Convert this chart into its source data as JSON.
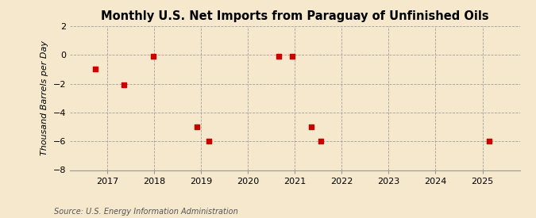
{
  "title": "Monthly U.S. Net Imports from Paraguay of Unfinished Oils",
  "ylabel": "Thousand Barrels per Day",
  "source": "Source: U.S. Energy Information Administration",
  "background_color": "#f5e8cc",
  "plot_bg_color": "#f5e8cc",
  "point_color": "#cc0000",
  "point_marker": "s",
  "point_size": 18,
  "ylim": [
    -8,
    2
  ],
  "yticks": [
    -8,
    -6,
    -4,
    -2,
    0,
    2
  ],
  "xtick_years": [
    2017,
    2018,
    2019,
    2020,
    2021,
    2022,
    2023,
    2024,
    2025
  ],
  "xlim_start": 2016.2,
  "xlim_end": 2025.8,
  "data_points": [
    [
      2016.75,
      -1.0
    ],
    [
      2017.35,
      -2.1
    ],
    [
      2017.98,
      -0.1
    ],
    [
      2018.92,
      -5.0
    ],
    [
      2019.17,
      -6.0
    ],
    [
      2020.65,
      -0.1
    ],
    [
      2020.95,
      -0.1
    ],
    [
      2021.35,
      -5.0
    ],
    [
      2021.55,
      -6.0
    ],
    [
      2025.15,
      -6.0
    ]
  ]
}
